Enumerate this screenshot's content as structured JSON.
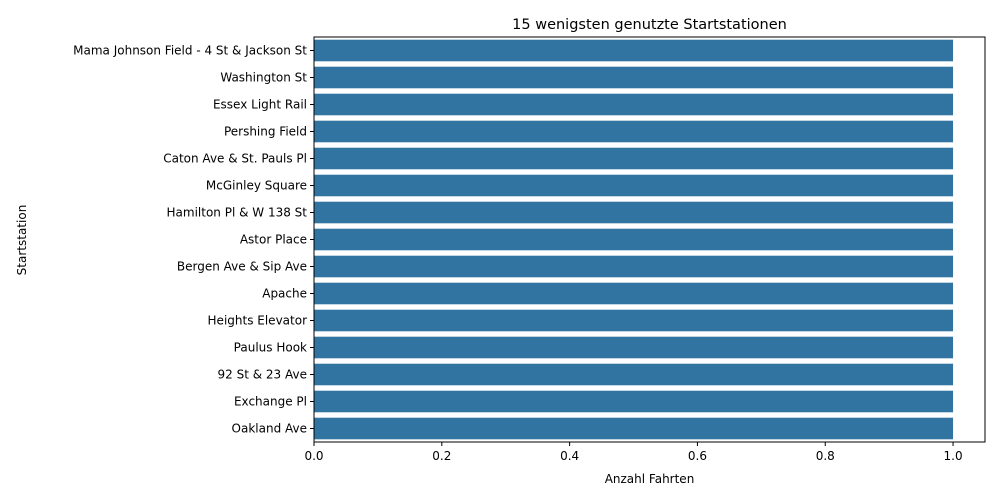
{
  "chart_data": {
    "type": "bar",
    "orientation": "horizontal",
    "title": "15 wenigsten genutzte Startstationen",
    "xlabel": "Anzahl Fahrten",
    "ylabel": "Startstation",
    "categories": [
      "Mama Johnson Field - 4 St & Jackson St",
      "Washington St",
      "Essex Light Rail",
      "Pershing Field",
      "Caton Ave & St. Pauls Pl",
      "McGinley Square",
      "Hamilton Pl & W 138 St",
      "Astor Place",
      "Bergen Ave & Sip Ave",
      "Apache",
      "Heights Elevator",
      "Paulus Hook",
      "92 St & 23 Ave",
      "Exchange Pl",
      "Oakland Ave"
    ],
    "values": [
      1,
      1,
      1,
      1,
      1,
      1,
      1,
      1,
      1,
      1,
      1,
      1,
      1,
      1,
      1
    ],
    "xlim": [
      0,
      1.05
    ],
    "xticks": [
      0.0,
      0.2,
      0.4,
      0.6,
      0.8,
      1.0
    ],
    "xtick_labels": [
      "0.0",
      "0.2",
      "0.4",
      "0.6",
      "0.8",
      "1.0"
    ],
    "grid": false,
    "bar_color": "#3274a1"
  }
}
